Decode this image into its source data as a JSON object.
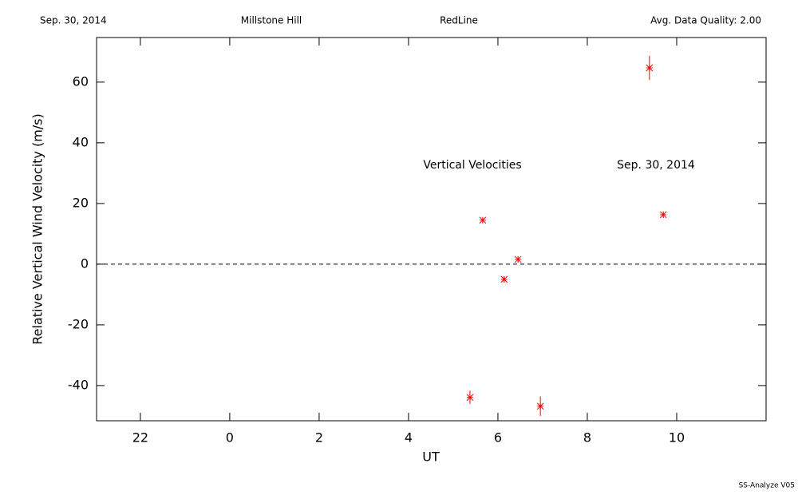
{
  "header": {
    "date": "Sep. 30, 2014",
    "site": "Millstone Hill",
    "emission": "RedLine",
    "quality": "Avg. Data Quality: 2.00"
  },
  "footer": "SS-Analyze V05",
  "chart_data": {
    "type": "scatter",
    "annotations": [
      "Vertical Velocities",
      "Sep. 30, 2014"
    ],
    "xlabel": "UT",
    "ylabel": "Relative Vertical Wind Velocity (m/s)",
    "x": [
      29.375,
      29.66,
      30.14,
      30.45,
      30.95,
      33.39,
      33.7
    ],
    "values": [
      -43.9,
      14.5,
      -5,
      1.6,
      -46.8,
      64.7,
      16.3
    ],
    "errors": [
      2.2,
      1,
      1,
      1,
      3.2,
      4,
      1
    ],
    "color": "#ff0000",
    "reference_line": 0,
    "xlim": [
      21.02,
      36
    ],
    "ylim": [
      -51.6,
      74.7
    ],
    "xticks": [
      22,
      {
        "value": 24,
        "label": "0"
      },
      {
        "value": 26,
        "label": "2"
      },
      {
        "value": 28,
        "label": "4"
      },
      {
        "value": 30,
        "label": "6"
      },
      {
        "value": 32,
        "label": "8"
      },
      {
        "value": 34,
        "label": "10"
      }
    ],
    "yticks": [
      -40,
      -20,
      0,
      20,
      40,
      60
    ]
  }
}
